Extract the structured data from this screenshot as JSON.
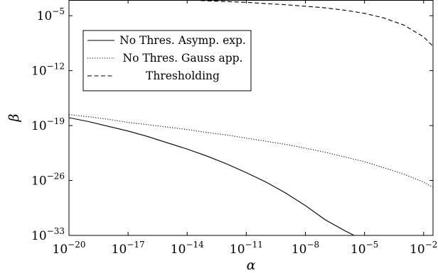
{
  "chart_data": {
    "type": "line",
    "xlabel": "α",
    "ylabel": "β",
    "x_scale": "log",
    "y_scale": "log",
    "xlim": [
      1e-20,
      0.03
    ],
    "ylim": [
      1e-33,
      0.001
    ],
    "x_ticks": [
      {
        "value": 1e-20,
        "base": "10",
        "exp": "−20"
      },
      {
        "value": 1e-17,
        "base": "10",
        "exp": "−17"
      },
      {
        "value": 1e-14,
        "base": "10",
        "exp": "−14"
      },
      {
        "value": 1e-11,
        "base": "10",
        "exp": "−11"
      },
      {
        "value": 1e-08,
        "base": "10",
        "exp": "−8"
      },
      {
        "value": 1e-05,
        "base": "10",
        "exp": "−5"
      },
      {
        "value": 0.01,
        "base": "10",
        "exp": "−2"
      }
    ],
    "y_ticks": [
      {
        "value": 1e-33,
        "base": "10",
        "exp": "−33"
      },
      {
        "value": 1e-26,
        "base": "10",
        "exp": "−26"
      },
      {
        "value": 1e-19,
        "base": "10",
        "exp": "−19"
      },
      {
        "value": 1e-12,
        "base": "10",
        "exp": "−12"
      },
      {
        "value": 1e-05,
        "base": "10",
        "exp": "−5"
      }
    ],
    "grid": false,
    "legend_position": "upper-left",
    "series": [
      {
        "name": "No Thres. Asymp. exp.",
        "style": "solid",
        "color": "#000000",
        "x": [
          1e-20,
          1e-19,
          1e-18,
          1e-17,
          1e-16,
          1e-15,
          1e-14,
          1e-13,
          1e-12,
          1e-11,
          1e-10,
          1e-09,
          1e-08,
          1e-07,
          1e-06,
          3e-06
        ],
        "y": [
          1e-18,
          3.2e-19,
          7.9e-20,
          2e-20,
          4e-21,
          6.3e-22,
          1e-22,
          1.3e-23,
          1.3e-24,
          1e-25,
          6.3e-27,
          2.5e-28,
          6.3e-30,
          1e-31,
          4e-33,
          1e-33
        ]
      },
      {
        "name": "No Thres. Gauss app.",
        "style": "dotted",
        "color": "#000000",
        "x": [
          1e-20,
          1e-19,
          1e-18,
          1e-17,
          1e-16,
          1e-15,
          1e-14,
          1e-13,
          1e-12,
          1e-11,
          1e-10,
          1e-09,
          1e-08,
          1e-07,
          1e-06,
          1e-05,
          0.0001,
          0.001,
          0.01,
          0.03
        ],
        "y": [
          2.5e-18,
          1.3e-18,
          6.3e-19,
          2.5e-19,
          1.3e-19,
          6.3e-20,
          3.2e-20,
          1.3e-20,
          6.3e-21,
          2.5e-21,
          1e-21,
          4e-22,
          1.3e-22,
          4e-23,
          1e-23,
          2.5e-24,
          4e-25,
          6.3e-26,
          6.3e-27,
          1.3e-27
        ]
      },
      {
        "name": "Thresholding",
        "style": "dashed",
        "color": "#000000",
        "x": [
          1e-14,
          1e-13,
          1e-12,
          1e-11,
          1e-10,
          1e-09,
          1e-08,
          1e-07,
          1e-06,
          1e-05,
          0.0001,
          0.001,
          0.01,
          0.03
        ],
        "y": [
          0.001,
          0.00079,
          0.00063,
          0.0005,
          0.00035,
          0.00025,
          0.00016,
          0.0001,
          5e-05,
          2e-05,
          5e-06,
          6.3e-07,
          2e-08,
          1.3e-09
        ]
      }
    ]
  }
}
